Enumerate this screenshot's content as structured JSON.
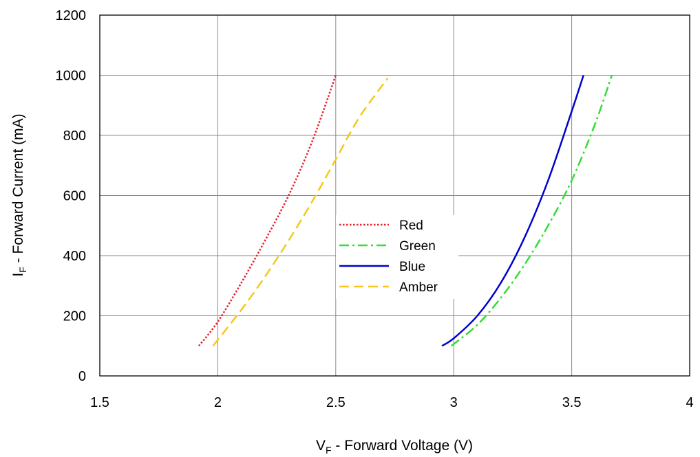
{
  "chart_data": {
    "type": "line",
    "title": "",
    "xlabel": {
      "main": "V",
      "sub": "F",
      "rest": " - Forward Voltage (V)"
    },
    "ylabel": {
      "main": "I",
      "sub": "F",
      "rest": " - Forward Current (mA)"
    },
    "xlim": [
      1.5,
      4
    ],
    "ylim": [
      0,
      1200
    ],
    "xticks": [
      1.5,
      2,
      2.5,
      3,
      3.5,
      4
    ],
    "yticks": [
      0,
      200,
      400,
      600,
      800,
      1000,
      1200
    ],
    "xtick_labels": [
      "1.5",
      "2",
      "2.5",
      "3",
      "3.5",
      "4"
    ],
    "ytick_labels": [
      "0",
      "200",
      "400",
      "600",
      "800",
      "1000",
      "1200"
    ],
    "grid": true,
    "legend_position": "center",
    "series": [
      {
        "name": "Red",
        "color": "#e8202a",
        "style": "dotted",
        "x": [
          1.92,
          2.0,
          2.1,
          2.2,
          2.3,
          2.4,
          2.5
        ],
        "y": [
          100,
          180,
          310,
          450,
          600,
          780,
          1000
        ]
      },
      {
        "name": "Green",
        "color": "#33dd33",
        "style": "dashdot",
        "x": [
          2.99,
          3.1,
          3.2,
          3.3,
          3.4,
          3.5,
          3.6,
          3.67
        ],
        "y": [
          100,
          170,
          260,
          370,
          500,
          650,
          840,
          1000
        ]
      },
      {
        "name": "Blue",
        "color": "#0000cc",
        "style": "solid",
        "x": [
          2.95,
          3.0,
          3.1,
          3.2,
          3.3,
          3.4,
          3.5,
          3.55
        ],
        "y": [
          100,
          125,
          200,
          310,
          460,
          650,
          880,
          1000
        ]
      },
      {
        "name": "Amber",
        "color": "#f5c81a",
        "style": "dashed",
        "x": [
          1.98,
          2.1,
          2.2,
          2.3,
          2.4,
          2.5,
          2.6,
          2.72
        ],
        "y": [
          100,
          220,
          330,
          450,
          580,
          720,
          860,
          990
        ]
      }
    ]
  }
}
